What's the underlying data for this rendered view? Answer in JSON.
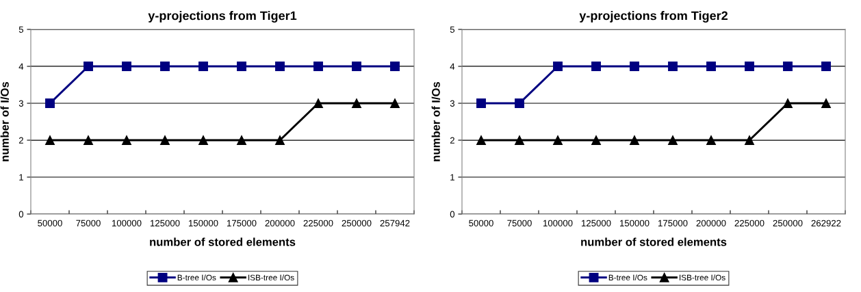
{
  "chart_data": [
    {
      "type": "line",
      "title": "y-projections from Tiger1",
      "xlabel": "number of stored elements",
      "ylabel": "number of I/Os",
      "categories": [
        "50000",
        "75000",
        "100000",
        "125000",
        "150000",
        "175000",
        "200000",
        "225000",
        "250000",
        "257942"
      ],
      "series": [
        {
          "name": "B-tree I/Os",
          "color": "#000080",
          "marker": "square",
          "values": [
            3,
            4,
            4,
            4,
            4,
            4,
            4,
            4,
            4,
            4
          ]
        },
        {
          "name": "ISB-tree I/Os",
          "color": "#000000",
          "marker": "triangle",
          "values": [
            2,
            2,
            2,
            2,
            2,
            2,
            2,
            3,
            3,
            3
          ]
        }
      ],
      "ylim": [
        0,
        5
      ],
      "yticks": [
        0,
        1,
        2,
        3,
        4,
        5
      ],
      "grid": "y",
      "legend": "bottom",
      "line_style": "solid"
    },
    {
      "type": "line",
      "title": "y-projections from Tiger2",
      "xlabel": "number of stored elements",
      "ylabel": "number of I/Os",
      "categories": [
        "50000",
        "75000",
        "100000",
        "125000",
        "150000",
        "175000",
        "200000",
        "225000",
        "250000",
        "262922"
      ],
      "series": [
        {
          "name": "B-tree I/Os",
          "color": "#000080",
          "marker": "square",
          "values": [
            3,
            3,
            4,
            4,
            4,
            4,
            4,
            4,
            4,
            4
          ]
        },
        {
          "name": "ISB-tree I/Os",
          "color": "#000000",
          "marker": "triangle",
          "values": [
            2,
            2,
            2,
            2,
            2,
            2,
            2,
            2,
            3,
            3
          ]
        }
      ],
      "ylim": [
        0,
        5
      ],
      "yticks": [
        0,
        1,
        2,
        3,
        4,
        5
      ],
      "grid": "y",
      "legend": "bottom",
      "line_style": "solid"
    }
  ]
}
